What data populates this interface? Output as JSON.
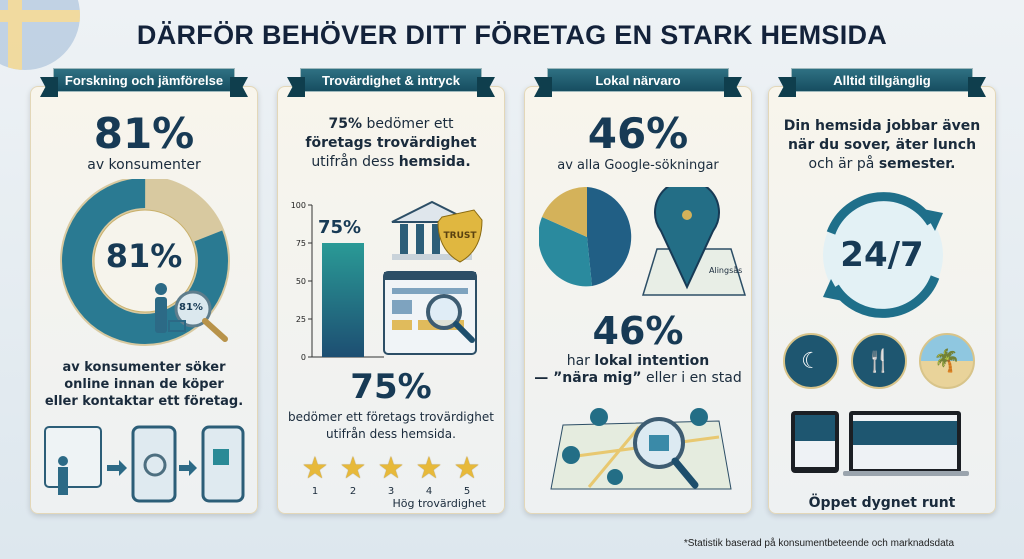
{
  "title": "DÄRFÖR BEHÖVER DITT FÖRETAG EN STARK HEMSIDA",
  "colors": {
    "navy": "#173a55",
    "teal": "#2a8a96",
    "gold": "#d4b25a",
    "ribbon": "#1f5d70"
  },
  "cards": [
    {
      "ribbon": "Forskning och jämförelse",
      "stat": "81%",
      "stat_sub": "av konsumenter",
      "donut_label": "81%",
      "lens_label": "81%",
      "donut_value_percent": 81,
      "desc": [
        "av konsumenter söker",
        "online innan de köper",
        "eller kontaktar ett företag."
      ],
      "icons": [
        "shopper-browser-icon",
        "arrow-right-icon",
        "phone-search-icon",
        "arrow-right-icon",
        "phone-shopping-bag-icon"
      ]
    },
    {
      "ribbon": "Trovärdighet & intryck",
      "headline_bold": "75%",
      "headline_rest": " bedömer ett",
      "headline_line2": "företags trovärdighet",
      "headline_line3a": "utifrån dess ",
      "headline_line3b": "hemsida.",
      "bar_label": "75%",
      "stat": "75%",
      "desc": [
        "bedömer ett företags trovärdighet",
        "utifrån dess hemsida."
      ],
      "stars": [
        "1",
        "2",
        "3",
        "4",
        "5"
      ],
      "stars_caption": "Hög trovärdighet",
      "shield_text": "TRUST"
    },
    {
      "ribbon": "Lokal närvaro",
      "stat": "46%",
      "stat_sub": "av alla Google-sökningar",
      "map_label": "Alingsås",
      "stat2": "46%",
      "desc2_a": "har ",
      "desc2_b": "lokal intention",
      "desc3_a": "— ”nära mig”",
      "desc3_b": " eller i en stad"
    },
    {
      "ribbon": "Alltid tillgänglig",
      "desc": [
        "Din hemsida jobbar även",
        "när du sover, äter lunch"
      ],
      "desc3_a": "och är på ",
      "desc3_b": "semester.",
      "clock_label": "24/7",
      "activities": [
        "sleep-icon",
        "lunch-icon",
        "vacation-icon"
      ],
      "caption": "Öppet dygnet runt"
    }
  ],
  "chart_data": {
    "type": "bar",
    "categories": [
      ""
    ],
    "values": [
      75
    ],
    "ylim": [
      0,
      100
    ],
    "yticks": [
      "0",
      "25",
      "50",
      "75",
      "100"
    ],
    "data_labels": [
      "75%"
    ],
    "grid": false
  },
  "footnote": "*Statistik baserad på konsumentbeteende och marknadsdata"
}
